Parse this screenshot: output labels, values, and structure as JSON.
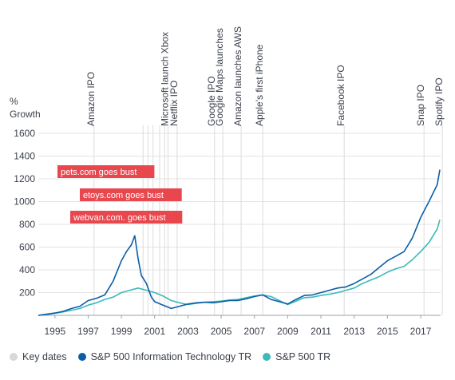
{
  "chart_data": {
    "type": "line",
    "ylabel": [
      "%",
      "Growth"
    ],
    "ylim": [
      0,
      1600
    ],
    "yticks": [
      200,
      400,
      600,
      800,
      1000,
      1200,
      1400,
      1600
    ],
    "xlim": [
      1994,
      2018.2
    ],
    "xticks": [
      "1995",
      "1997",
      "1999",
      "2001",
      "2003",
      "2005",
      "2007",
      "2009",
      "2011",
      "2013",
      "2015",
      "2017"
    ],
    "grid": "horizontal",
    "events": [
      {
        "year": 1997.35,
        "label": "Amazon IPO"
      },
      {
        "year": 2002.35,
        "label": "Netflix IPO"
      },
      {
        "year": 2001.8,
        "label": "Microsoft launch Xbox"
      },
      {
        "year": 2004.6,
        "label": "Google IPO"
      },
      {
        "year": 2005.1,
        "label": "Google Maps launches"
      },
      {
        "year": 2006.2,
        "label": "Amazon launches AWS"
      },
      {
        "year": 2007.5,
        "label": "Apple's first iPhone"
      },
      {
        "year": 2012.4,
        "label": "Facebook IPO"
      },
      {
        "year": 2017.2,
        "label": "Snap IPO"
      },
      {
        "year": 2018.3,
        "label": "Spotify IPO"
      }
    ],
    "notes": [
      {
        "label": "pets.com goes bust",
        "row": 0
      },
      {
        "label": "etoys.com goes bust",
        "row": 1
      },
      {
        "label": "webvan.com. goes bust",
        "row": 2
      }
    ],
    "event_lines": [
      2000.6,
      2000.3,
      2000.9,
      2001.3,
      2001.6
    ],
    "series": [
      {
        "name": "S&P 500 Information Technology TR",
        "color": "#0a5ea8",
        "x": [
          1994,
          1994.5,
          1995,
          1995.5,
          1996,
          1996.5,
          1997,
          1997.5,
          1998,
          1998.5,
          1999,
          1999.3,
          1999.6,
          1999.8,
          2000,
          2000.2,
          2000.5,
          2000.8,
          2001,
          2001.5,
          2002,
          2002.5,
          2003,
          2003.5,
          2004,
          2004.5,
          2005,
          2005.5,
          2006,
          2006.5,
          2007,
          2007.5,
          2008,
          2008.5,
          2009,
          2009.5,
          2010,
          2010.5,
          2011,
          2011.5,
          2012,
          2012.5,
          2013,
          2013.5,
          2014,
          2014.5,
          2015,
          2015.5,
          2016,
          2016.5,
          2017,
          2017.5,
          2018,
          2018.15
        ],
        "values": [
          0,
          10,
          20,
          35,
          60,
          80,
          130,
          150,
          180,
          300,
          480,
          560,
          620,
          700,
          500,
          350,
          280,
          160,
          120,
          90,
          60,
          80,
          100,
          110,
          115,
          110,
          120,
          130,
          130,
          145,
          165,
          180,
          140,
          120,
          100,
          140,
          175,
          180,
          200,
          220,
          240,
          250,
          280,
          320,
          360,
          420,
          480,
          520,
          560,
          680,
          860,
          1000,
          1150,
          1280
        ]
      },
      {
        "name": "S&P 500 TR",
        "color": "#3bbab8",
        "x": [
          1994,
          1994.5,
          1995,
          1995.5,
          1996,
          1996.5,
          1997,
          1997.5,
          1998,
          1998.5,
          1999,
          1999.5,
          2000,
          2000.5,
          2001,
          2001.5,
          2002,
          2002.5,
          2003,
          2003.5,
          2004,
          2004.5,
          2005,
          2005.5,
          2006,
          2006.5,
          2007,
          2007.5,
          2008,
          2008.5,
          2009,
          2009.5,
          2010,
          2010.5,
          2011,
          2011.5,
          2012,
          2012.5,
          2013,
          2013.5,
          2014,
          2014.5,
          2015,
          2015.5,
          2016,
          2016.5,
          2017,
          2017.5,
          2018,
          2018.15
        ],
        "values": [
          0,
          8,
          18,
          30,
          45,
          60,
          90,
          110,
          140,
          160,
          200,
          220,
          240,
          220,
          200,
          170,
          130,
          110,
          95,
          105,
          115,
          120,
          125,
          135,
          140,
          155,
          170,
          180,
          165,
          130,
          95,
          125,
          155,
          160,
          175,
          185,
          200,
          220,
          240,
          280,
          310,
          340,
          380,
          410,
          430,
          490,
          560,
          640,
          760,
          840
        ]
      }
    ],
    "legend": [
      {
        "label": "Key dates",
        "color": "#d8d8d8"
      },
      {
        "label": "S&P 500 Information Technology TR",
        "color": "#0a5ea8"
      },
      {
        "label": "S&P 500 TR",
        "color": "#3bbab8"
      }
    ],
    "legend_position": "bottom-left",
    "note_color": "#e8474e"
  }
}
